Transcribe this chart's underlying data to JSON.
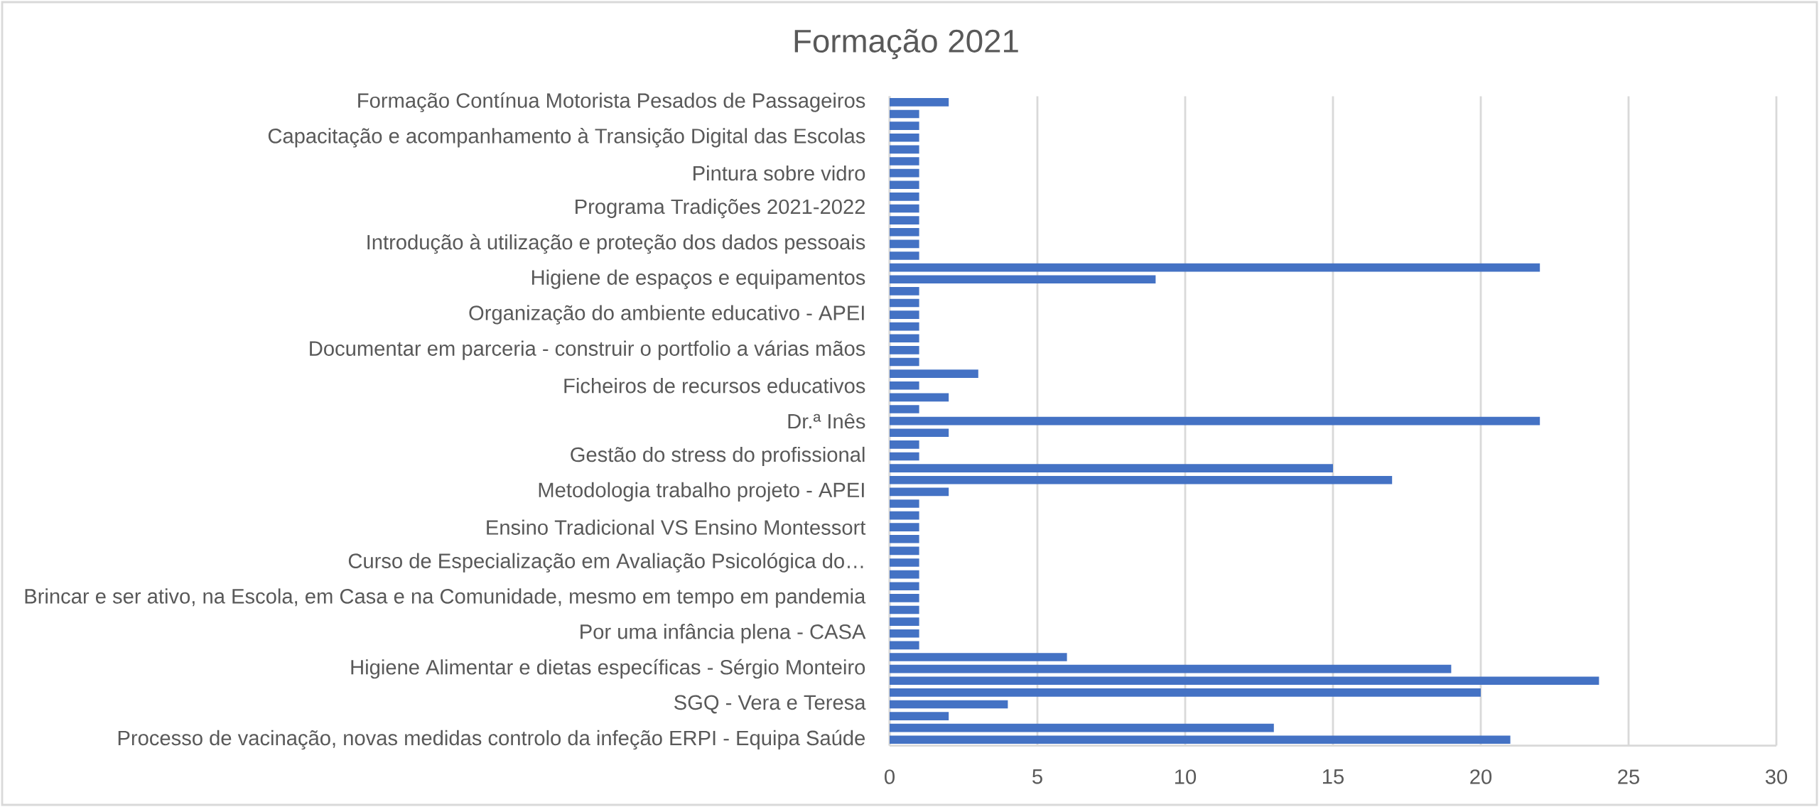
{
  "chart_data": {
    "type": "bar",
    "orientation": "horizontal",
    "title": "Formação 2021",
    "categories": [
      "Formação Contínua Motorista Pesados de Passageiros",
      null,
      null,
      "Capacitação e acompanhamento à Transição Digital das Escolas",
      null,
      null,
      "Pintura sobre vidro",
      null,
      null,
      "Programa Tradições 2021-2022",
      null,
      null,
      "Introdução à utilização e proteção dos dados pessoais",
      null,
      null,
      "Higiene de espaços e equipamentos",
      null,
      null,
      "Organização do ambiente educativo - APEI",
      null,
      null,
      "Documentar em parceria - construir o portfolio a várias mãos",
      null,
      null,
      "Ficheiros de recursos educativos",
      null,
      null,
      "Dr.ª Inês",
      null,
      null,
      "Gestão do stress do profissional",
      null,
      null,
      "Metodologia trabalho projeto - APEI",
      null,
      null,
      "Ensino Tradicional VS Ensino Montessort",
      null,
      null,
      "Curso de Especialização em Avaliação Psicológica do…",
      null,
      null,
      "Brincar e ser ativo, na Escola, em Casa e na Comunidade, mesmo em tempo em pandemia",
      null,
      null,
      "Por uma infância plena - CASA",
      null,
      null,
      "Higiene Alimentar e dietas específicas - Sérgio Monteiro",
      null,
      null,
      "SGQ - Vera e Teresa",
      null,
      null,
      "Processo de vacinação, novas medidas controlo da infeção ERPI - Equipa Saúde"
    ],
    "values": [
      2,
      1,
      1,
      1,
      1,
      1,
      1,
      1,
      1,
      1,
      1,
      1,
      1,
      1,
      22,
      9,
      1,
      1,
      1,
      1,
      1,
      1,
      1,
      3,
      1,
      2,
      1,
      22,
      2,
      1,
      1,
      15,
      17,
      2,
      1,
      1,
      1,
      1,
      1,
      1,
      1,
      1,
      1,
      1,
      1,
      1,
      1,
      6,
      19,
      24,
      20,
      4,
      2,
      13,
      21
    ],
    "color": "#4472c4",
    "xlim": [
      0,
      30
    ],
    "xticks": [
      0,
      5,
      10,
      15,
      20,
      25,
      30
    ],
    "grid": "x"
  }
}
